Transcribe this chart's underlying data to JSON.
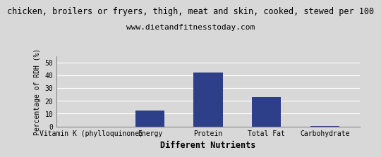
{
  "title": "chicken, broilers or fryers, thigh, meat and skin, cooked, stewed per 100",
  "subtitle": "www.dietandfitnesstoday.com",
  "categories": [
    "Vitamin K (phylloquinone)",
    "Energy",
    "Protein",
    "Total Fat",
    "Carbohydrate"
  ],
  "values": [
    0,
    12.5,
    42,
    23,
    0.5
  ],
  "bar_color": "#2e3f8a",
  "xlabel": "Different Nutrients",
  "ylabel": "Percentage of RDH (%)",
  "ylim": [
    0,
    55
  ],
  "yticks": [
    0,
    10,
    20,
    30,
    40,
    50
  ],
  "background_color": "#d8d8d8",
  "title_fontsize": 8.5,
  "subtitle_fontsize": 8,
  "tick_fontsize": 7,
  "xlabel_fontsize": 8.5,
  "ylabel_fontsize": 7
}
